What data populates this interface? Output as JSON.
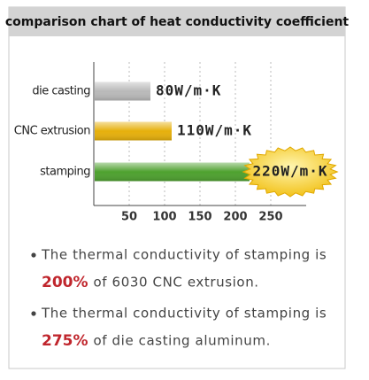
{
  "chart_data": {
    "type": "bar",
    "orientation": "horizontal",
    "title": "comparison chart of heat conductivity coefficient",
    "categories": [
      "die casting",
      "CNC extrusion",
      "stamping"
    ],
    "values": [
      80,
      110,
      220
    ],
    "value_labels": [
      "80W/m·K",
      "110W/m·K",
      "220W/m·K"
    ],
    "colors": [
      "#b9b9b9",
      "#e6b00c",
      "#4ea12f"
    ],
    "xlim": [
      0,
      300
    ],
    "xticks": [
      50,
      100,
      150,
      200,
      250
    ],
    "grid": true
  },
  "notes": [
    {
      "text": "The thermal conductivity of stamping is",
      "highlight": "200%",
      "rest": "of 6030 CNC extrusion."
    },
    {
      "text": "The thermal conductivity of stamping is",
      "highlight": "275%",
      "rest": "of die casting aluminum."
    }
  ]
}
